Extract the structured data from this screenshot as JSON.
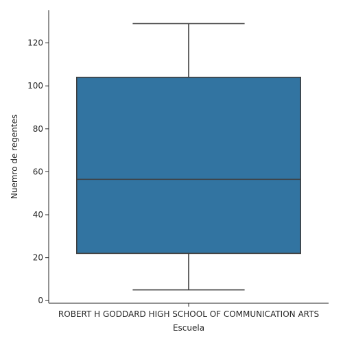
{
  "chart_data": {
    "type": "box",
    "categories": [
      "ROBERT H GODDARD HIGH SCHOOL OF COMMUNICATION ARTS"
    ],
    "boxes": [
      {
        "category": "ROBERT H GODDARD HIGH SCHOOL OF COMMUNICATION ARTS",
        "whisker_low": 5,
        "q1": 22,
        "median": 56.5,
        "q3": 104,
        "whisker_high": 129
      }
    ],
    "xlabel": "Escuela",
    "ylabel": "Nuemro de regentes",
    "ylim": [
      -1.2,
      135.2
    ],
    "yticks": [
      0,
      20,
      40,
      60,
      80,
      100,
      120
    ],
    "grid": false,
    "colors": {
      "box_fill": "#3274a1",
      "line": "#3f3f3f",
      "axis": "#262626"
    }
  }
}
